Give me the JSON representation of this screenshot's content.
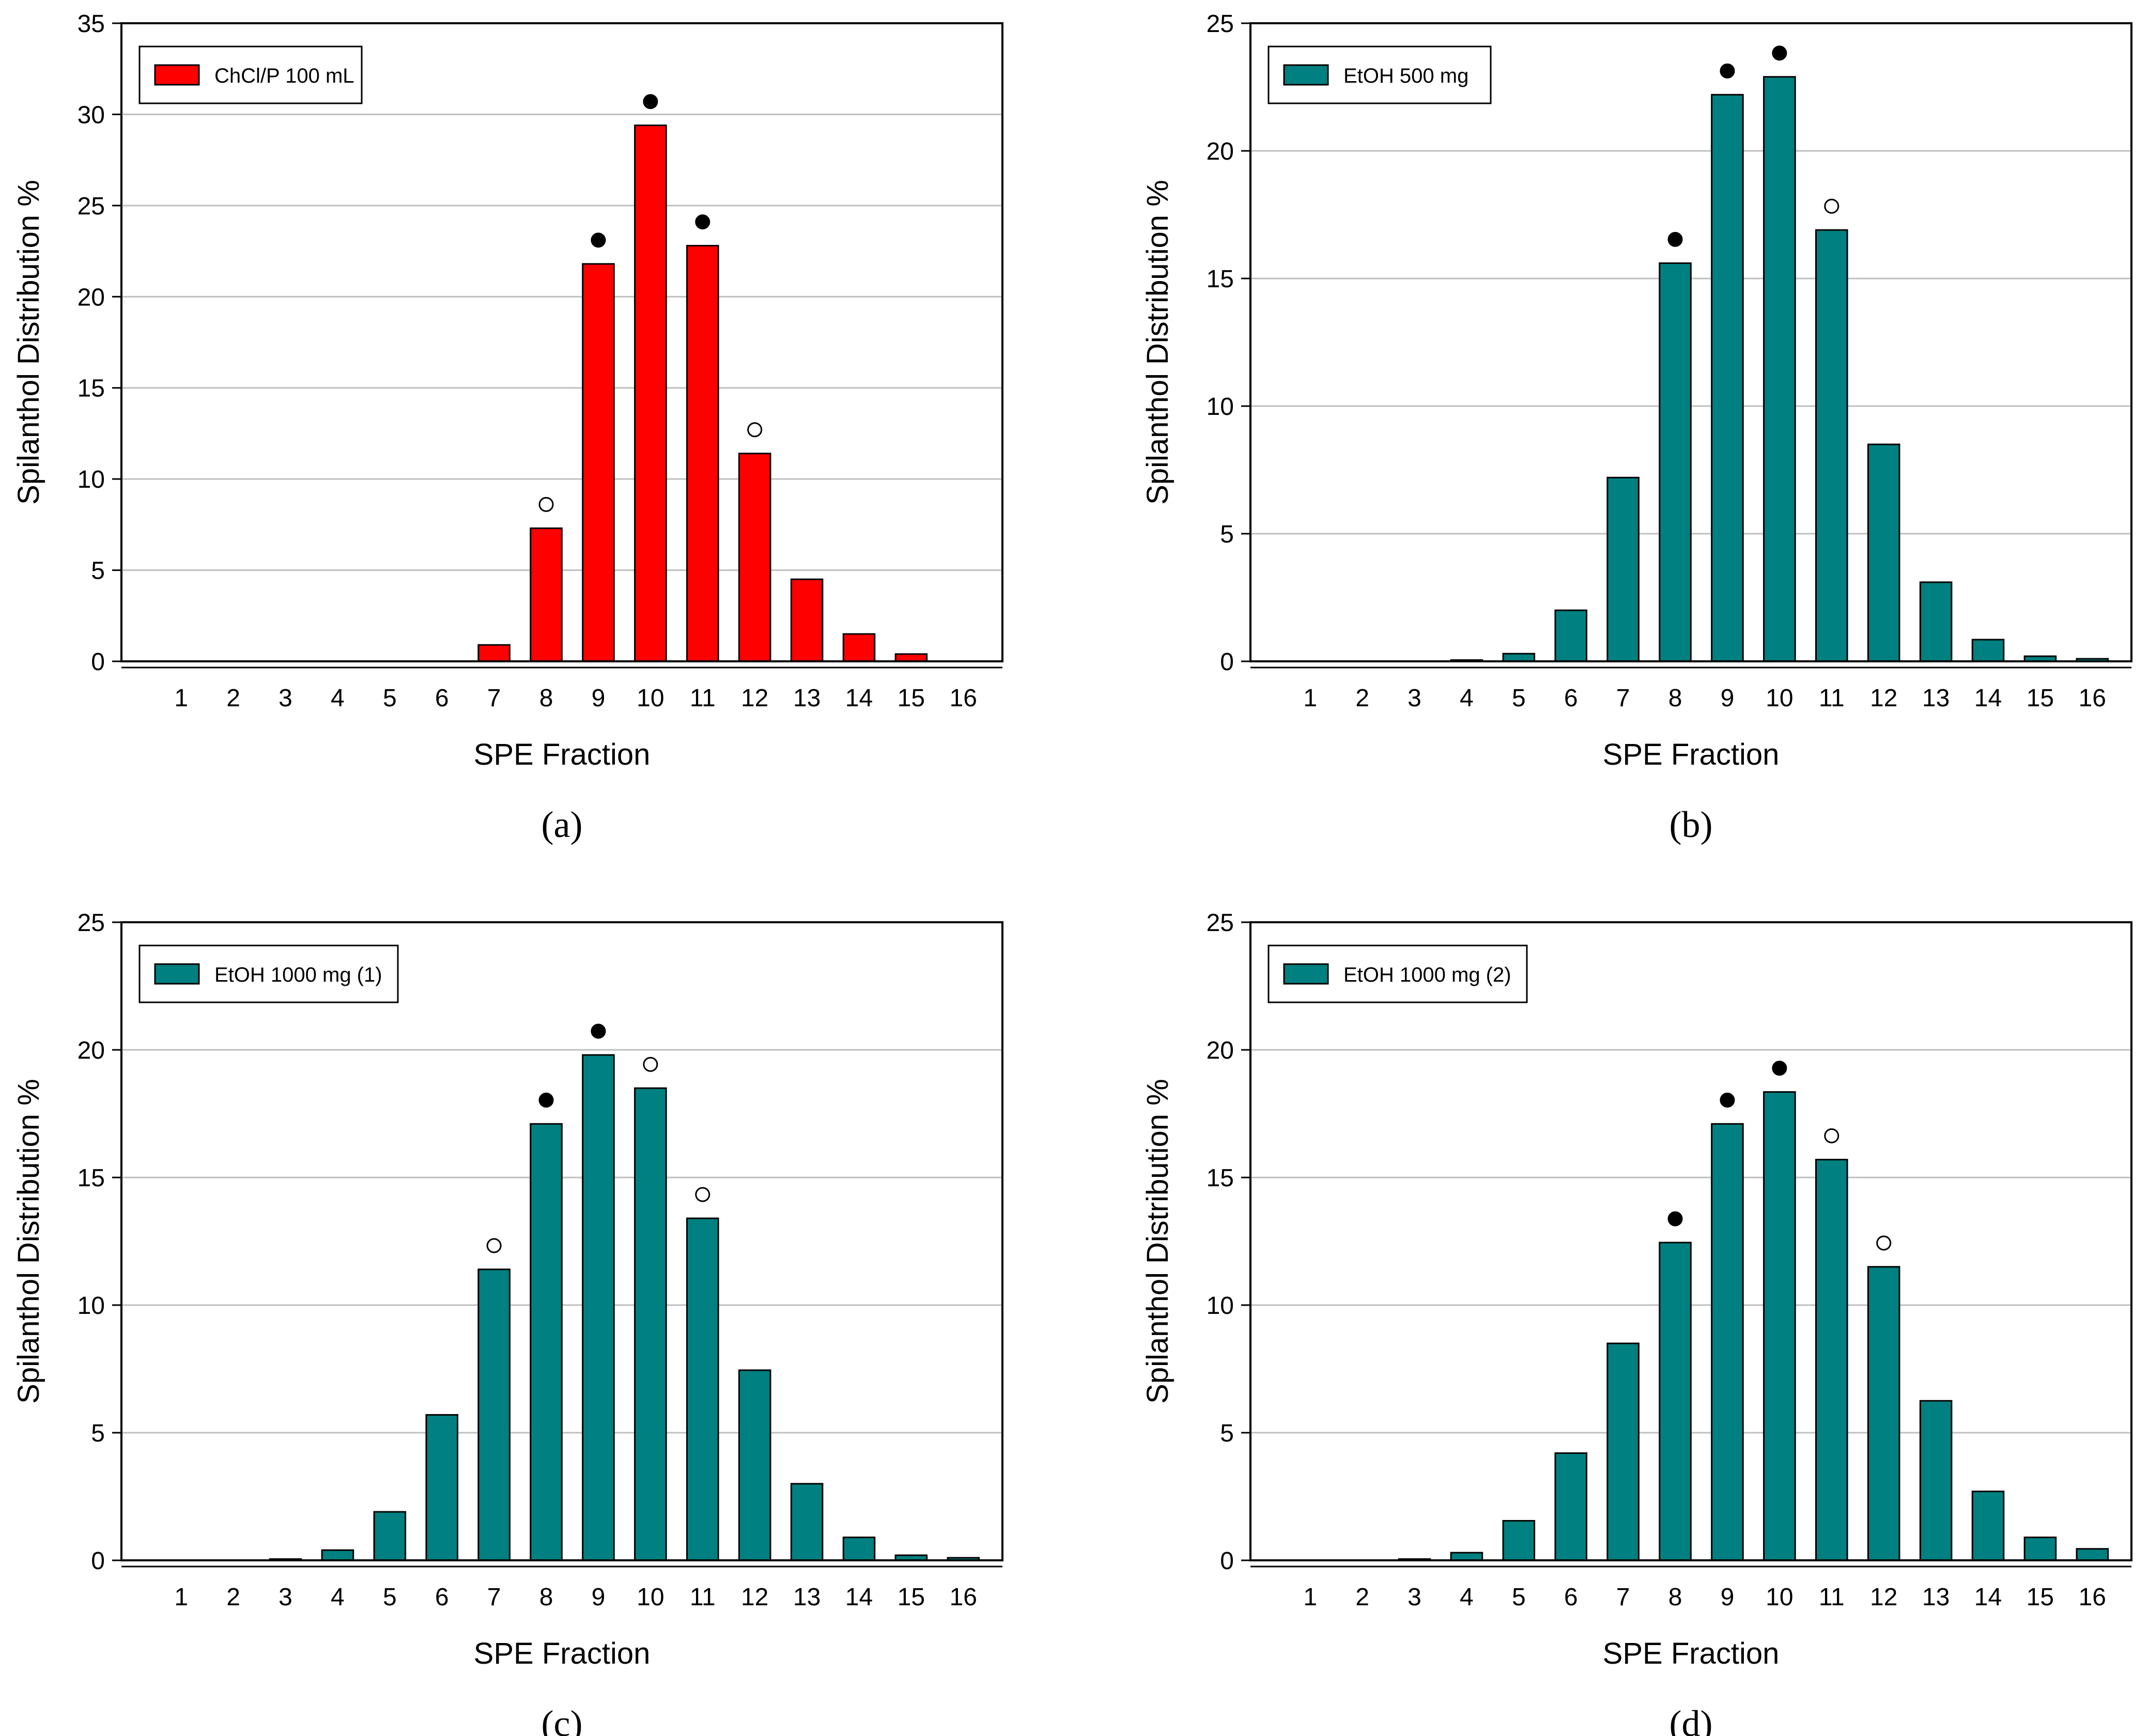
{
  "figure": {
    "background": "#ffffff",
    "gridline_color": "#bfbfbf",
    "panels": [
      {
        "label": "a",
        "label_text": "(a)",
        "ylabel": "Spilanthol Distribution %",
        "xlabel": "SPE Fraction",
        "ylim": [
          0,
          35
        ],
        "yticks": [
          "0",
          "5",
          "10",
          "15",
          "20",
          "25",
          "30",
          "35"
        ],
        "legend": "ChClP",
        "bar_color": "#ff0000"
      },
      {
        "label": "b",
        "label_text": "(b)",
        "ylabel": "Spilanthol Distribution %",
        "xlabel": "SPE Fraction",
        "ylim": [
          0,
          25
        ],
        "yticks": [
          "0",
          "5",
          "10",
          "15",
          "20",
          "25"
        ],
        "legend": "EtOH 500 mg",
        "bar_color": "#008080"
      },
      {
        "label": "c",
        "label_text": "(c)",
        "ylabel": "Spilanthol Distribution %",
        "xlabel": "SPE Fraction",
        "ylim": [
          0,
          25
        ],
        "yticks": [
          "0",
          "5",
          "10",
          "15",
          "20",
          "25"
        ],
        "legend": "EtOH 1000 mg (1)",
        "bar_color": "#008080"
      },
      {
        "label": "d",
        "label_text": "(d)",
        "ylabel": "Spilanthol Distribution %",
        "xlabel": "SPE Fraction",
        "ylim": [
          0,
          25
        ],
        "yticks": [
          "0",
          "5",
          "10",
          "15",
          "20",
          "25"
        ],
        "legend": "EtOH 1000 mg (2)",
        "bar_color": "#008080"
      }
    ]
  },
  "chart_data": [
    {
      "type": "bar",
      "title": "",
      "xlabel": "SPE Fraction",
      "ylabel": "Spilanthol Distribution %",
      "ylim": [
        0,
        35
      ],
      "grid": true,
      "legend_position": "top-left",
      "categories": [
        "1",
        "2",
        "3",
        "4",
        "5",
        "6",
        "7",
        "8",
        "9",
        "10",
        "11",
        "12",
        "13",
        "14",
        "15",
        "16"
      ],
      "series": [
        {
          "name": "ChCl/P 100 mL",
          "color": "#ff0000",
          "values": [
            0,
            0,
            0,
            0,
            0,
            0,
            0.9,
            7.3,
            21.8,
            29.4,
            22.8,
            11.4,
            4.5,
            1.5,
            0.4,
            0
          ]
        }
      ],
      "markers": [
        {
          "category": "8",
          "style": "open"
        },
        {
          "category": "9",
          "style": "filled"
        },
        {
          "category": "10",
          "style": "filled"
        },
        {
          "category": "11",
          "style": "filled"
        },
        {
          "category": "12",
          "style": "open"
        }
      ]
    },
    {
      "type": "bar",
      "title": "",
      "xlabel": "SPE Fraction",
      "ylabel": "Spilanthol Distribution %",
      "ylim": [
        0,
        25
      ],
      "grid": true,
      "legend_position": "top-left",
      "categories": [
        "1",
        "2",
        "3",
        "4",
        "5",
        "6",
        "7",
        "8",
        "9",
        "10",
        "11",
        "12",
        "13",
        "14",
        "15",
        "16"
      ],
      "series": [
        {
          "name": "EtOH 500 mg",
          "color": "#008080",
          "values": [
            0,
            0,
            0,
            0.05,
            0.3,
            2.0,
            7.2,
            15.6,
            22.2,
            22.9,
            16.9,
            8.5,
            3.1,
            0.85,
            0.2,
            0.1
          ]
        }
      ],
      "markers": [
        {
          "category": "8",
          "style": "filled"
        },
        {
          "category": "9",
          "style": "filled"
        },
        {
          "category": "10",
          "style": "filled"
        },
        {
          "category": "11",
          "style": "open"
        }
      ]
    },
    {
      "type": "bar",
      "title": "",
      "xlabel": "SPE Fraction",
      "ylabel": "Spilanthol Distribution %",
      "ylim": [
        0,
        25
      ],
      "grid": true,
      "legend_position": "top-left",
      "categories": [
        "1",
        "2",
        "3",
        "4",
        "5",
        "6",
        "7",
        "8",
        "9",
        "10",
        "11",
        "12",
        "13",
        "14",
        "15",
        "16"
      ],
      "series": [
        {
          "name": "EtOH 1000 mg (1)",
          "color": "#008080",
          "values": [
            0,
            0,
            0.05,
            0.4,
            1.9,
            5.7,
            11.4,
            17.1,
            19.8,
            18.5,
            13.4,
            7.45,
            3.0,
            0.9,
            0.2,
            0.1
          ]
        }
      ],
      "markers": [
        {
          "category": "7",
          "style": "open"
        },
        {
          "category": "8",
          "style": "filled"
        },
        {
          "category": "9",
          "style": "filled"
        },
        {
          "category": "10",
          "style": "open"
        },
        {
          "category": "11",
          "style": "open"
        }
      ]
    },
    {
      "type": "bar",
      "title": "",
      "xlabel": "SPE Fraction",
      "ylabel": "Spilanthol Distribution %",
      "ylim": [
        0,
        25
      ],
      "grid": true,
      "legend_position": "top-left",
      "categories": [
        "1",
        "2",
        "3",
        "4",
        "5",
        "6",
        "7",
        "8",
        "9",
        "10",
        "11",
        "12",
        "13",
        "14",
        "15",
        "16"
      ],
      "series": [
        {
          "name": "EtOH 1000 mg (2)",
          "color": "#008080",
          "values": [
            0,
            0,
            0.05,
            0.3,
            1.55,
            4.2,
            8.5,
            12.45,
            17.1,
            18.35,
            15.7,
            11.5,
            6.25,
            2.7,
            0.9,
            0.45
          ]
        }
      ],
      "markers": [
        {
          "category": "8",
          "style": "filled"
        },
        {
          "category": "9",
          "style": "filled"
        },
        {
          "category": "10",
          "style": "filled"
        },
        {
          "category": "11",
          "style": "open"
        },
        {
          "category": "12",
          "style": "open"
        }
      ]
    }
  ]
}
